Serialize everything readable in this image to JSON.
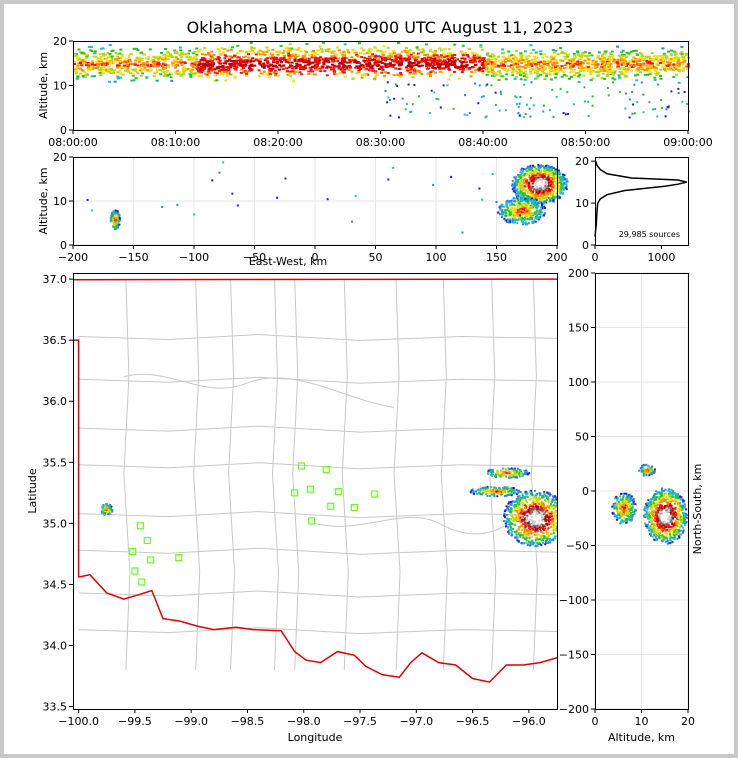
{
  "title": "Oklahoma LMA 0800-0900 UTC August 11, 2023",
  "colors": {
    "density_scale": [
      "#1f1fd0",
      "#2f7bff",
      "#1fbfbf",
      "#22c322",
      "#b8d811",
      "#f0e010",
      "#ff8c00",
      "#ff1010",
      "#c00000",
      "#7a7a7a",
      "#cfcfcf",
      "#ffffff"
    ],
    "state_border": "#e00000",
    "county_lines": "#c8c8c8",
    "station_marker": "#66ff22",
    "background": "#ffffff",
    "frame": "#c8c8c8"
  },
  "chart_data": [
    {
      "id": "time-altitude",
      "type": "heatmap",
      "xlabel": "",
      "ylabel": "Altitude, km",
      "xticks": [
        "08:00:00",
        "08:10:00",
        "08:20:00",
        "08:30:00",
        "08:40:00",
        "08:50:00",
        "09:00:00"
      ],
      "xlim_minutes": [
        0,
        60
      ],
      "ylim": [
        0,
        20
      ],
      "yticks": [
        "0",
        "10",
        "20"
      ],
      "main_layer_km": [
        11,
        19
      ],
      "core_altitude_km": 15
    },
    {
      "id": "east-west-altitude",
      "type": "heatmap",
      "xlabel": "East-West, km",
      "ylabel": "Altitude, km",
      "xlim": [
        -200,
        200
      ],
      "ylim": [
        0,
        20
      ],
      "xticks": [
        "−200",
        "−150",
        "−100",
        "−50",
        "0",
        "50",
        "100",
        "150",
        "200"
      ],
      "yticks": [
        "0",
        "10",
        "20"
      ],
      "clusters": [
        {
          "x_range": [
            -172,
            -160
          ],
          "z_range": [
            3,
            9
          ]
        },
        {
          "x_range": [
            140,
            200
          ],
          "z_range": [
            3,
            20
          ]
        }
      ]
    },
    {
      "id": "altitude-histogram",
      "type": "line",
      "xlim": [
        0,
        1400
      ],
      "ylim": [
        0,
        21
      ],
      "xticks": [
        "0",
        "1000"
      ],
      "yticks": [
        "0",
        "10",
        "20"
      ],
      "annotation": "29,985 sources",
      "profile_altitude_km": [
        2,
        5,
        7,
        9,
        10,
        11,
        12,
        13,
        13.5,
        14,
        14.5,
        15,
        15.5,
        16,
        17,
        18,
        19,
        20
      ],
      "profile_count": [
        0,
        20,
        25,
        35,
        40,
        80,
        180,
        450,
        750,
        1050,
        1250,
        1380,
        1250,
        550,
        180,
        80,
        30,
        10
      ]
    },
    {
      "id": "plan-view",
      "type": "scatter",
      "xlabel": "Longitude",
      "ylabel": "Latitude",
      "xlim": [
        -100.05,
        -95.75
      ],
      "ylim": [
        33.48,
        37.05
      ],
      "xticks": [
        "−100.0",
        "−99.5",
        "−99.0",
        "−98.5",
        "−98.0",
        "−97.5",
        "−97.0",
        "−96.5",
        "−96.0"
      ],
      "yticks": [
        "33.5",
        "34.0",
        "34.5",
        "35.0",
        "35.5",
        "36.0",
        "36.5",
        "37.0"
      ],
      "stations": [
        {
          "lon": -98.02,
          "lat": 35.47
        },
        {
          "lon": -97.8,
          "lat": 35.44
        },
        {
          "lon": -98.08,
          "lat": 35.25
        },
        {
          "lon": -97.94,
          "lat": 35.28
        },
        {
          "lon": -97.69,
          "lat": 35.26
        },
        {
          "lon": -97.37,
          "lat": 35.24
        },
        {
          "lon": -97.76,
          "lat": 35.14
        },
        {
          "lon": -97.55,
          "lat": 35.13
        },
        {
          "lon": -97.93,
          "lat": 35.02
        },
        {
          "lon": -99.45,
          "lat": 34.98
        },
        {
          "lon": -99.39,
          "lat": 34.86
        },
        {
          "lon": -99.52,
          "lat": 34.77
        },
        {
          "lon": -99.36,
          "lat": 34.7
        },
        {
          "lon": -99.11,
          "lat": 34.72
        },
        {
          "lon": -99.5,
          "lat": 34.61
        },
        {
          "lon": -99.44,
          "lat": 34.52
        }
      ],
      "flash_regions": [
        {
          "lon_range": [
            -99.85,
            -99.68
          ],
          "lat_range": [
            35.05,
            35.2
          ]
        },
        {
          "lon_range": [
            -96.45,
            -95.75
          ],
          "lat_range": [
            34.8,
            35.5
          ]
        }
      ]
    },
    {
      "id": "altitude-north-south",
      "type": "heatmap",
      "xlabel": "Altitude, km",
      "ylabel": "North-South, km",
      "xlim": [
        0,
        20
      ],
      "ylim": [
        -200,
        200
      ],
      "xticks": [
        "0",
        "10",
        "20"
      ],
      "yticks": [
        "−200",
        "−150",
        "−100",
        "−50",
        "0",
        "50",
        "100",
        "150",
        "200"
      ],
      "clusters": [
        {
          "ns_range": [
            -55,
            30
          ],
          "z_range": [
            3,
            20
          ]
        }
      ]
    }
  ]
}
